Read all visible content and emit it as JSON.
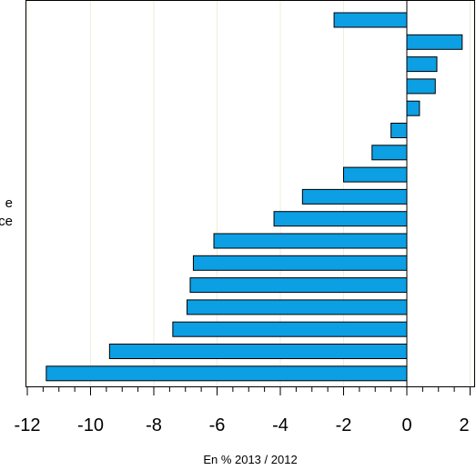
{
  "chart_data": {
    "type": "bar",
    "orientation": "horizontal",
    "categories_visible_fragments": [
      {
        "text": "e"
      },
      {
        "text": "ce"
      }
    ],
    "values": [
      -2.3,
      1.75,
      0.95,
      0.9,
      0.4,
      -0.5,
      -1.1,
      -2.0,
      -3.3,
      -4.2,
      -6.1,
      -6.75,
      -6.85,
      -6.95,
      -7.4,
      -9.4,
      -11.4
    ],
    "xlabel": "En % 2013 / 2012",
    "ylabel": "",
    "xlim": [
      -12,
      2
    ],
    "xticks": [
      -12,
      -10,
      -8,
      -6,
      -4,
      -2,
      0,
      2
    ],
    "bar_color": "#0c9fe3",
    "bar_edge_color": "#000000",
    "grid_color": "#eeeedd",
    "grid": true,
    "legend": "none"
  }
}
